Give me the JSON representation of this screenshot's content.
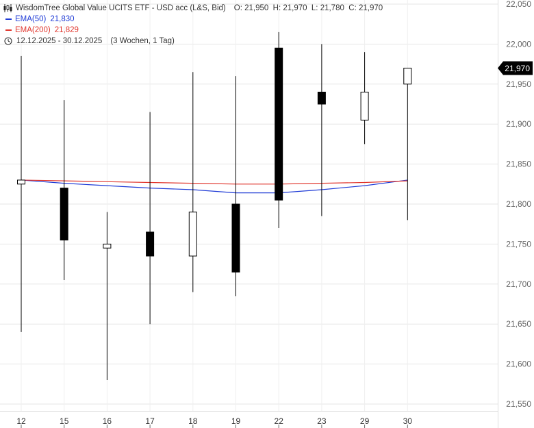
{
  "header": {
    "title": "WisdomTree Global Value UCITS ETF - USD acc (L&S, Bid)",
    "ohlc": "O: 21,950  H: 21,970  L: 21,780  C: 21,970",
    "ema50_label": "EMA(50)",
    "ema50_value": "21,830",
    "ema200_label": "EMA(200)",
    "ema200_value": "21,829",
    "date_range": "12.12.2025 - 30.12.2025",
    "period": "(3 Wochen, 1 Tag)",
    "icons": {
      "chart": "candlestick-icon",
      "time": "clock-icon"
    }
  },
  "colors": {
    "ema50": "#1f3bd6",
    "ema200": "#e0362d",
    "candle": "#000000",
    "grid": "#e6e6e6",
    "last_price_bg": "#000000"
  },
  "chart_data": {
    "type": "candlestick",
    "categories": [
      "12",
      "15",
      "16",
      "17",
      "18",
      "19",
      "22",
      "23",
      "29",
      "30"
    ],
    "open": [
      21.825,
      21.82,
      21.745,
      21.765,
      21.735,
      21.8,
      21.995,
      21.94,
      21.905,
      21.95
    ],
    "high": [
      21.985,
      21.93,
      21.79,
      21.915,
      21.965,
      21.96,
      22.015,
      22.0,
      21.99,
      21.97
    ],
    "low": [
      21.64,
      21.705,
      21.58,
      21.65,
      21.69,
      21.685,
      21.77,
      21.785,
      21.875,
      21.78
    ],
    "close": [
      21.83,
      21.755,
      21.75,
      21.735,
      21.79,
      21.715,
      21.805,
      21.925,
      21.94,
      21.97
    ],
    "series": [
      {
        "name": "EMA(50)",
        "values": [
          21.83,
          21.826,
          21.823,
          21.82,
          21.818,
          21.814,
          21.814,
          21.818,
          21.823,
          21.83
        ]
      },
      {
        "name": "EMA(200)",
        "values": [
          21.83,
          21.829,
          21.828,
          21.827,
          21.826,
          21.825,
          21.825,
          21.826,
          21.827,
          21.829
        ]
      }
    ],
    "yticks": [
      "21,550",
      "21,600",
      "21,650",
      "21,700",
      "21,750",
      "21,800",
      "21,850",
      "21,900",
      "21,950",
      "22,000",
      "22,050"
    ],
    "ylim": [
      21.545,
      22.055
    ],
    "last_price": "21,970",
    "grid": true,
    "y_axis_position": "right"
  }
}
